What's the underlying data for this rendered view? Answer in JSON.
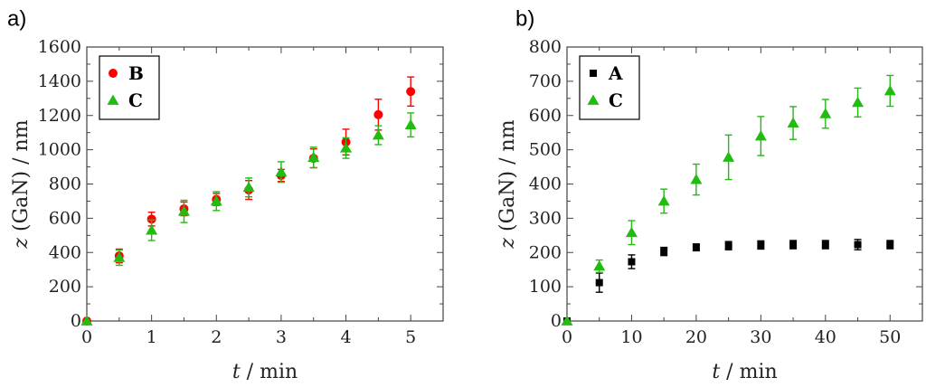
{
  "panels": [
    {
      "panel_label": "a)",
      "chart_data": {
        "type": "scatter",
        "xlabel_var": "t",
        "xlabel_unit": "/ min",
        "ylabel": "z (GaN) / nm",
        "xlim": [
          0,
          5.5
        ],
        "ylim": [
          0,
          1600
        ],
        "xticks": [
          0,
          1,
          2,
          3,
          4,
          5
        ],
        "yticks": [
          0,
          200,
          400,
          600,
          800,
          1000,
          1200,
          1400,
          1600
        ],
        "legend_position": "top-left",
        "series": [
          {
            "name": "B",
            "marker": "circle",
            "color": "#ff0000",
            "x": [
              0,
              0.5,
              1,
              1.5,
              2,
              2.5,
              3,
              3.5,
              4,
              4.5,
              5
            ],
            "y": [
              0,
              380,
              595,
              655,
              710,
              765,
              850,
              950,
              1045,
              1205,
              1340
            ],
            "err": [
              0,
              40,
              40,
              40,
              35,
              55,
              35,
              55,
              75,
              90,
              85
            ]
          },
          {
            "name": "C",
            "marker": "triangle",
            "color": "#22bb11",
            "x": [
              0,
              0.5,
              1,
              1.5,
              2,
              2.5,
              3,
              3.5,
              4,
              4.5,
              5
            ],
            "y": [
              0,
              370,
              530,
              640,
              700,
              780,
              870,
              955,
              1010,
              1085,
              1145
            ],
            "err": [
              0,
              45,
              60,
              65,
              55,
              55,
              60,
              60,
              60,
              55,
              70
            ]
          }
        ]
      }
    },
    {
      "panel_label": "b)",
      "chart_data": {
        "type": "scatter",
        "xlabel_var": "t",
        "xlabel_unit": "/ min",
        "ylabel": "z (GaN) / nm",
        "xlim": [
          0,
          55
        ],
        "ylim": [
          0,
          800
        ],
        "xticks": [
          0,
          10,
          20,
          30,
          40,
          50
        ],
        "yticks": [
          0,
          100,
          200,
          300,
          400,
          500,
          600,
          700,
          800
        ],
        "legend_position": "top-left",
        "series": [
          {
            "name": "A",
            "marker": "square",
            "color": "#000000",
            "x": [
              0,
              5,
              10,
              15,
              20,
              25,
              30,
              35,
              40,
              45,
              50
            ],
            "y": [
              0,
              112,
              173,
              203,
              215,
              220,
              222,
              223,
              223,
              223,
              223
            ],
            "err": [
              0,
              28,
              20,
              12,
              10,
              12,
              12,
              12,
              12,
              15,
              12
            ]
          },
          {
            "name": "C",
            "marker": "triangle",
            "color": "#22bb11",
            "x": [
              0,
              5,
              10,
              15,
              20,
              25,
              30,
              35,
              40,
              45,
              50
            ],
            "y": [
              0,
              160,
              258,
              350,
              413,
              478,
              540,
              578,
              605,
              638,
              672
            ],
            "err": [
              0,
              18,
              35,
              35,
              45,
              65,
              57,
              48,
              42,
              42,
              45
            ]
          }
        ]
      }
    }
  ]
}
